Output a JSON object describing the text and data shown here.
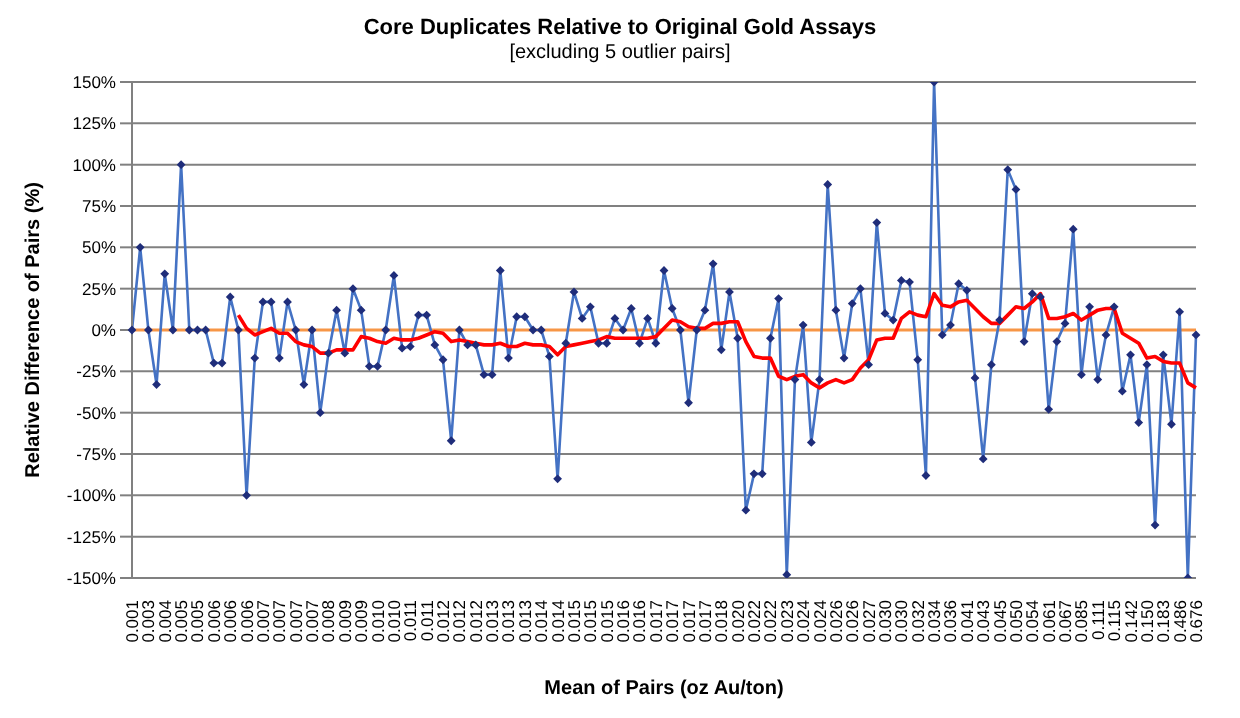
{
  "chart_data": {
    "type": "line",
    "title": "Core Duplicates Relative to Original Gold Assays",
    "subtitle": "[excluding 5 outlier pairs]",
    "xlabel": "Mean of Pairs (oz Au/ton)",
    "ylabel": "Relative Difference of Pairs (%)",
    "categories": [
      "0.001",
      null,
      "0.003",
      null,
      "0.004",
      null,
      "0.005",
      null,
      "0.005",
      null,
      "0.006",
      null,
      "0.006",
      null,
      "0.006",
      null,
      "0.007",
      null,
      "0.007",
      null,
      "0.007",
      null,
      "0.007",
      null,
      "0.008",
      null,
      "0.009",
      null,
      "0.009",
      null,
      "0.010",
      null,
      "0.010",
      null,
      "0.011",
      null,
      "0.011",
      null,
      "0.012",
      null,
      "0.012",
      null,
      "0.012",
      null,
      "0.013",
      null,
      "0.013",
      null,
      "0.013",
      null,
      "0.014",
      null,
      "0.014",
      null,
      "0.015",
      null,
      "0.015",
      null,
      "0.015",
      null,
      "0.016",
      null,
      "0.016",
      null,
      "0.017",
      null,
      "0.017",
      null,
      "0.017",
      null,
      "0.017",
      null,
      "0.018",
      null,
      "0.020",
      null,
      "0.022",
      null,
      "0.022",
      null,
      "0.023",
      null,
      "0.024",
      null,
      "0.024",
      null,
      "0.026",
      null,
      "0.026",
      null,
      "0.027",
      null,
      "0.030",
      null,
      "0.030",
      null,
      "0.032",
      null,
      "0.034",
      null,
      "0.036",
      null,
      "0.041",
      null,
      "0.043",
      null,
      "0.045",
      null,
      "0.050",
      null,
      "0.054",
      null,
      "0.061",
      null,
      "0.067",
      null,
      "0.085",
      null,
      "0.111",
      null,
      "0.115",
      null,
      "0.142",
      null,
      "0.150",
      null,
      "0.183",
      null,
      "0.486",
      null,
      "0.676"
    ],
    "series": [
      {
        "color": "#4472c4",
        "marker": "diamond",
        "values": [
          0,
          50,
          0,
          -33,
          34,
          0,
          100,
          0,
          0,
          0,
          -20,
          -20,
          20,
          0,
          -100,
          -17,
          17,
          17,
          -17,
          17,
          0,
          -33,
          0,
          -50,
          -14,
          12,
          -14,
          25,
          12,
          -22,
          -22,
          0,
          33,
          -11,
          -10,
          9,
          9,
          -9,
          -18,
          -67,
          0,
          -9,
          -9,
          -27,
          -27,
          36,
          -17,
          8,
          8,
          0,
          0,
          -16,
          -90,
          -8,
          23,
          7,
          14,
          -8,
          -8,
          7,
          0,
          13,
          -8,
          7,
          -8,
          36,
          13,
          0,
          -44,
          0,
          12,
          40,
          -12,
          23,
          -5,
          -109,
          -87,
          -87,
          -5,
          19,
          -148,
          -30,
          3,
          -68,
          -30,
          88,
          12,
          -17,
          16,
          25,
          -21,
          65,
          10,
          6,
          30,
          29,
          -18,
          -88,
          150,
          -3,
          3,
          28,
          24,
          -29,
          -78,
          -21,
          6,
          97,
          85,
          -7,
          22,
          20,
          -48,
          -7,
          4,
          61,
          -27,
          14,
          -30,
          -3,
          14,
          -37,
          -15,
          -56,
          -21,
          -118,
          -15,
          -57,
          11,
          -150,
          -3
        ]
      },
      {
        "color": "#ff0000",
        "marker": "none",
        "values": [
          null,
          null,
          null,
          null,
          null,
          null,
          null,
          null,
          null,
          null,
          null,
          null,
          null,
          9,
          1,
          -3,
          -1,
          1,
          -2,
          -2,
          -7,
          -9,
          -10,
          -14,
          -14,
          -12,
          -12,
          -12,
          -4,
          -5,
          -7,
          -8,
          -5,
          -6,
          -6,
          -5,
          -3,
          -1,
          -2,
          -7,
          -6,
          -7,
          -8,
          -9,
          -9,
          -8,
          -10,
          -10,
          -8,
          -9,
          -9,
          -10,
          -15,
          -10,
          -9,
          -8,
          -7,
          -6,
          -4,
          -5,
          -5,
          -5,
          -5,
          -5,
          -4,
          1,
          6,
          5,
          2,
          1,
          1,
          4,
          4,
          5,
          5,
          -7,
          -16,
          -17,
          -17,
          -28,
          -30,
          -28,
          -27,
          -32,
          -35,
          -32,
          -30,
          -32,
          -30,
          -23,
          -18,
          -6,
          -5,
          -5,
          7,
          11,
          9,
          8,
          22,
          15,
          14,
          17,
          18,
          13,
          8,
          4,
          4,
          9,
          14,
          13,
          17,
          22,
          7,
          7,
          8,
          10,
          6,
          9,
          12,
          13,
          13,
          -2,
          -5,
          -8,
          -17,
          -16,
          -19,
          -20,
          -20,
          -32,
          -35
        ]
      }
    ],
    "ylim": [
      -150,
      150
    ],
    "yticks": [
      {
        "value": -150,
        "label": "-150%"
      },
      {
        "value": -125,
        "label": "-125%"
      },
      {
        "value": -100,
        "label": "-100%"
      },
      {
        "value": -75,
        "label": "-75%"
      },
      {
        "value": -50,
        "label": "-50%"
      },
      {
        "value": -25,
        "label": "-25%"
      },
      {
        "value": 0,
        "label": "0%"
      },
      {
        "value": 25,
        "label": "25%"
      },
      {
        "value": 50,
        "label": "50%"
      },
      {
        "value": 75,
        "label": "75%"
      },
      {
        "value": 100,
        "label": "100%"
      },
      {
        "value": 125,
        "label": "125%"
      },
      {
        "value": 150,
        "label": "150%"
      }
    ],
    "grid": "y",
    "ref_lines": [
      {
        "axis": "y",
        "value": 0,
        "color": "#f79646"
      }
    ]
  }
}
